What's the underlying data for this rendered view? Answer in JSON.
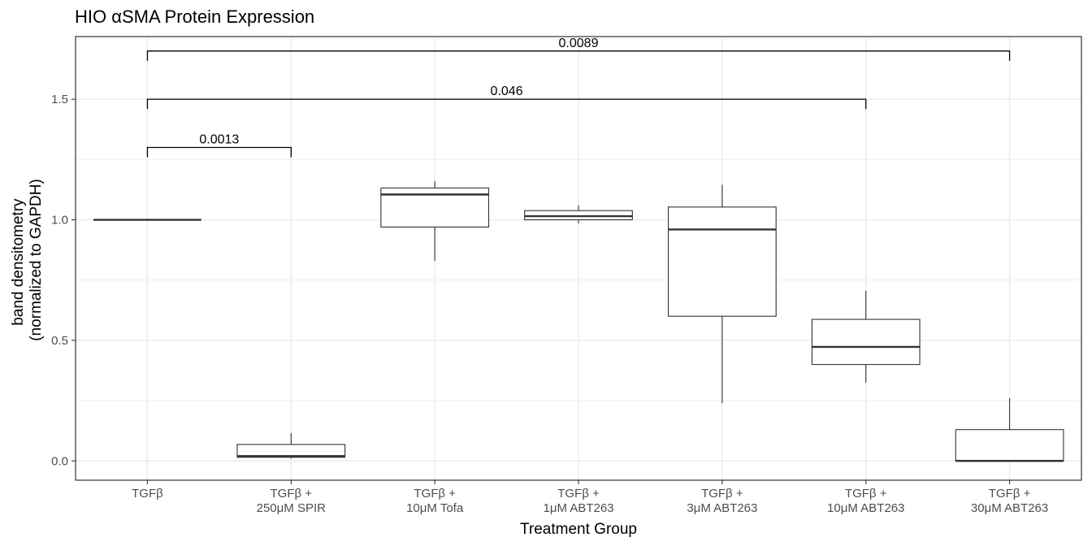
{
  "chart_data": {
    "type": "box",
    "title": "HIO αSMA Protein Expression",
    "xlabel": "Treatment Group",
    "ylabel": [
      "band densitometry",
      "(normalized to GAPDH)"
    ],
    "ylim": [
      -0.08,
      1.76
    ],
    "yticks": [
      0.0,
      0.5,
      1.0,
      1.5
    ],
    "ytick_labels": [
      "0.0",
      "0.5",
      "1.0",
      "1.5"
    ],
    "grid": true,
    "categories": [
      [
        "TGFβ"
      ],
      [
        "TGFβ +",
        "250μM SPIR"
      ],
      [
        "TGFβ +",
        "10μM Tofa"
      ],
      [
        "TGFβ +",
        "1μM ABT263"
      ],
      [
        "TGFβ +",
        "3μM ABT263"
      ],
      [
        "TGFβ +",
        "10μM ABT263"
      ],
      [
        "TGFβ +",
        "30μM ABT263"
      ]
    ],
    "boxes": [
      {
        "min": 1.0,
        "q1": 1.0,
        "median": 1.0,
        "q3": 1.0,
        "max": 1.0
      },
      {
        "min": 0.01,
        "q1": 0.015,
        "median": 0.02,
        "q3": 0.068,
        "max": 0.115
      },
      {
        "min": 0.83,
        "q1": 0.97,
        "median": 1.105,
        "q3": 1.132,
        "max": 1.16
      },
      {
        "min": 0.985,
        "q1": 1.0,
        "median": 1.015,
        "q3": 1.038,
        "max": 1.06
      },
      {
        "min": 0.24,
        "q1": 0.6,
        "median": 0.96,
        "q3": 1.053,
        "max": 1.145
      },
      {
        "min": 0.325,
        "q1": 0.4,
        "median": 0.473,
        "q3": 0.587,
        "max": 0.705
      },
      {
        "min": 0.0,
        "q1": 0.0,
        "median": 0.0,
        "q3": 0.13,
        "max": 0.26
      }
    ],
    "comparisons": [
      {
        "from": 0,
        "to": 1,
        "y": 1.3,
        "label": "0.0013"
      },
      {
        "from": 0,
        "to": 5,
        "y": 1.5,
        "label": "0.046"
      },
      {
        "from": 0,
        "to": 6,
        "y": 1.7,
        "label": "0.0089"
      }
    ]
  }
}
